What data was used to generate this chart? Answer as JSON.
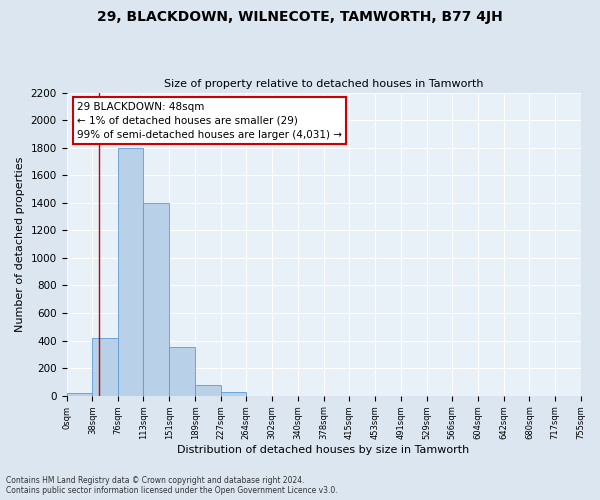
{
  "title": "29, BLACKDOWN, WILNECOTE, TAMWORTH, B77 4JH",
  "subtitle": "Size of property relative to detached houses in Tamworth",
  "xlabel": "Distribution of detached houses by size in Tamworth",
  "ylabel": "Number of detached properties",
  "bin_edges": [
    0,
    38,
    76,
    113,
    151,
    189,
    227,
    264,
    302,
    340,
    378,
    415,
    453,
    491,
    529,
    566,
    604,
    642,
    680,
    717,
    755
  ],
  "bar_heights": [
    20,
    420,
    1800,
    1400,
    350,
    75,
    30,
    0,
    0,
    0,
    0,
    0,
    0,
    0,
    0,
    0,
    0,
    0,
    0,
    0
  ],
  "bar_color": "#b8d0e8",
  "bar_edge_color": "#5b9bd5",
  "property_size": 48,
  "annotation_line_color": "#cc0000",
  "annotation_box_edgecolor": "#cc0000",
  "annotation_title": "29 BLACKDOWN: 48sqm",
  "annotation_line1": "← 1% of detached houses are smaller (29)",
  "annotation_line2": "99% of semi-detached houses are larger (4,031) →",
  "ylim": [
    0,
    2200
  ],
  "yticks": [
    0,
    200,
    400,
    600,
    800,
    1000,
    1200,
    1400,
    1600,
    1800,
    2000,
    2200
  ],
  "tick_labels": [
    "0sqm",
    "38sqm",
    "76sqm",
    "113sqm",
    "151sqm",
    "189sqm",
    "227sqm",
    "264sqm",
    "302sqm",
    "340sqm",
    "378sqm",
    "415sqm",
    "453sqm",
    "491sqm",
    "529sqm",
    "566sqm",
    "604sqm",
    "642sqm",
    "680sqm",
    "717sqm",
    "755sqm"
  ],
  "footnote1": "Contains HM Land Registry data © Crown copyright and database right 2024.",
  "footnote2": "Contains public sector information licensed under the Open Government Licence v3.0.",
  "bg_color": "#dce6f0",
  "plot_bg_color": "#e8f0f8",
  "grid_color": "#ffffff"
}
